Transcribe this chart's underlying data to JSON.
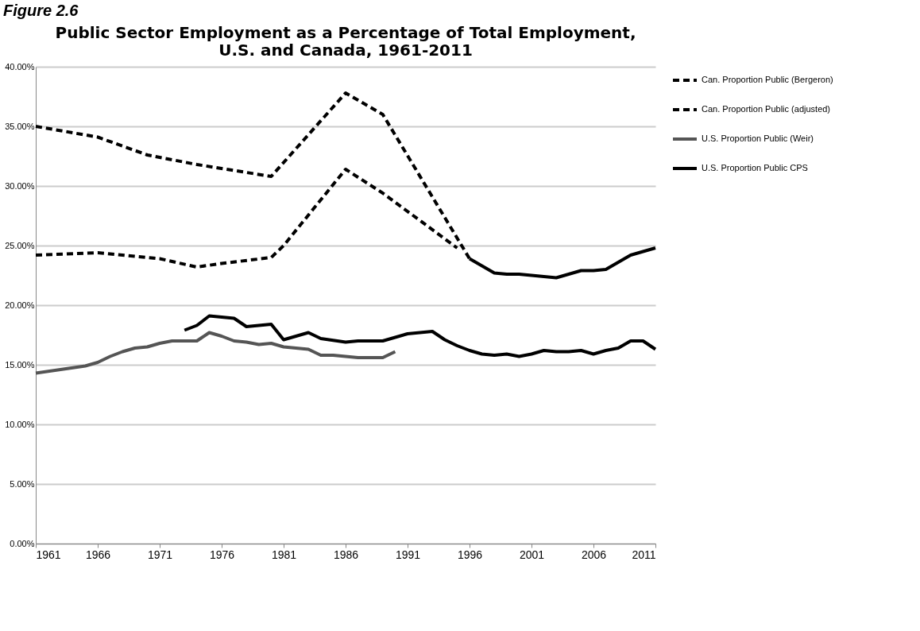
{
  "chart_data": {
    "type": "line",
    "title": "Public Sector Employment as a Percentage of Total Employment, U.S. and Canada, 1961-2011",
    "annotations": [
      "Figure 2.6"
    ],
    "xlim": [
      1961,
      2011
    ],
    "xticks": [
      1961,
      1966,
      1971,
      1976,
      1981,
      1986,
      1991,
      1996,
      2001,
      2006,
      2011
    ],
    "ylim": [
      0,
      40
    ],
    "yticks": [
      {
        "value": 0,
        "label": "0.00%"
      },
      {
        "value": 5,
        "label": "5.00%"
      },
      {
        "value": 10,
        "label": "10.00%"
      },
      {
        "value": 15,
        "label": "15.00%"
      },
      {
        "value": 20,
        "label": "20.00%"
      },
      {
        "value": 25,
        "label": "25.00%"
      },
      {
        "value": 30,
        "label": "30.00%"
      },
      {
        "value": 35,
        "label": "35.00%"
      },
      {
        "value": 40,
        "label": "40.00%"
      }
    ],
    "grid": "y",
    "legend": "right",
    "marker": "none",
    "series": [
      {
        "name": "Can. Proportion Public (Bergeron)",
        "color": "#000000",
        "line_style": "dashed",
        "x": [
          1961,
          1966,
          1970,
          1974,
          1980,
          1986,
          1989,
          1996
        ],
        "values": [
          35.0,
          34.1,
          32.6,
          31.8,
          30.8,
          37.8,
          36.0,
          23.9
        ]
      },
      {
        "name": "Can. Proportion Public (adjusted)",
        "color": "#000000",
        "line_style": "dashed",
        "x": [
          1961,
          1966,
          1971,
          1974,
          1976,
          1980,
          1981,
          1986,
          1989,
          1995
        ],
        "values": [
          24.2,
          24.4,
          23.9,
          23.2,
          23.5,
          24.0,
          25.0,
          31.4,
          29.4,
          24.8
        ]
      },
      {
        "name": "U.S. Proportion Public (Weir)",
        "color": "#555555",
        "line_style": "solid",
        "x": [
          1961,
          1963,
          1965,
          1966,
          1967,
          1968,
          1969,
          1970,
          1971,
          1972,
          1973,
          1974,
          1975,
          1976,
          1977,
          1978,
          1979,
          1980,
          1981,
          1982,
          1983,
          1984,
          1985,
          1986,
          1987,
          1988,
          1989,
          1990
        ],
        "values": [
          14.3,
          14.6,
          14.9,
          15.2,
          15.7,
          16.1,
          16.4,
          16.5,
          16.8,
          17.0,
          17.0,
          17.0,
          17.7,
          17.4,
          17.0,
          16.9,
          16.7,
          16.8,
          16.5,
          16.4,
          16.3,
          15.8,
          15.8,
          15.7,
          15.6,
          15.6,
          15.6,
          16.1
        ]
      },
      {
        "name": "U.S. Proportion Public CPS",
        "color": "#000000",
        "line_style": "solid",
        "x": [
          1973,
          1974,
          1975,
          1977,
          1978,
          1980,
          1981,
          1983,
          1984,
          1986,
          1987,
          1989,
          1991,
          1993,
          1994,
          1995,
          1996,
          1997,
          1998,
          1999,
          2000,
          2001,
          2002,
          2003,
          2004,
          2005,
          2006,
          2007,
          2008,
          2009,
          2010,
          2011
        ],
        "values": [
          17.9,
          18.3,
          19.1,
          18.9,
          18.2,
          18.4,
          17.1,
          17.7,
          17.2,
          16.9,
          17.0,
          17.0,
          17.6,
          17.8,
          17.1,
          16.6,
          16.2,
          15.9,
          15.8,
          15.9,
          15.7,
          15.9,
          16.2,
          16.1,
          16.1,
          16.2,
          15.9,
          16.2,
          16.4,
          17.0,
          17.0,
          16.3
        ]
      },
      {
        "color": "#000000",
        "line_style": "solid",
        "x": [
          1996,
          1998,
          1999,
          2000,
          2001,
          2002,
          2003,
          2004,
          2005,
          2006,
          2007,
          2008,
          2009,
          2010,
          2011
        ],
        "values": [
          23.9,
          22.7,
          22.6,
          22.6,
          22.5,
          22.4,
          22.3,
          22.6,
          22.9,
          22.9,
          23.0,
          23.6,
          24.2,
          24.5,
          24.8
        ]
      }
    ]
  }
}
